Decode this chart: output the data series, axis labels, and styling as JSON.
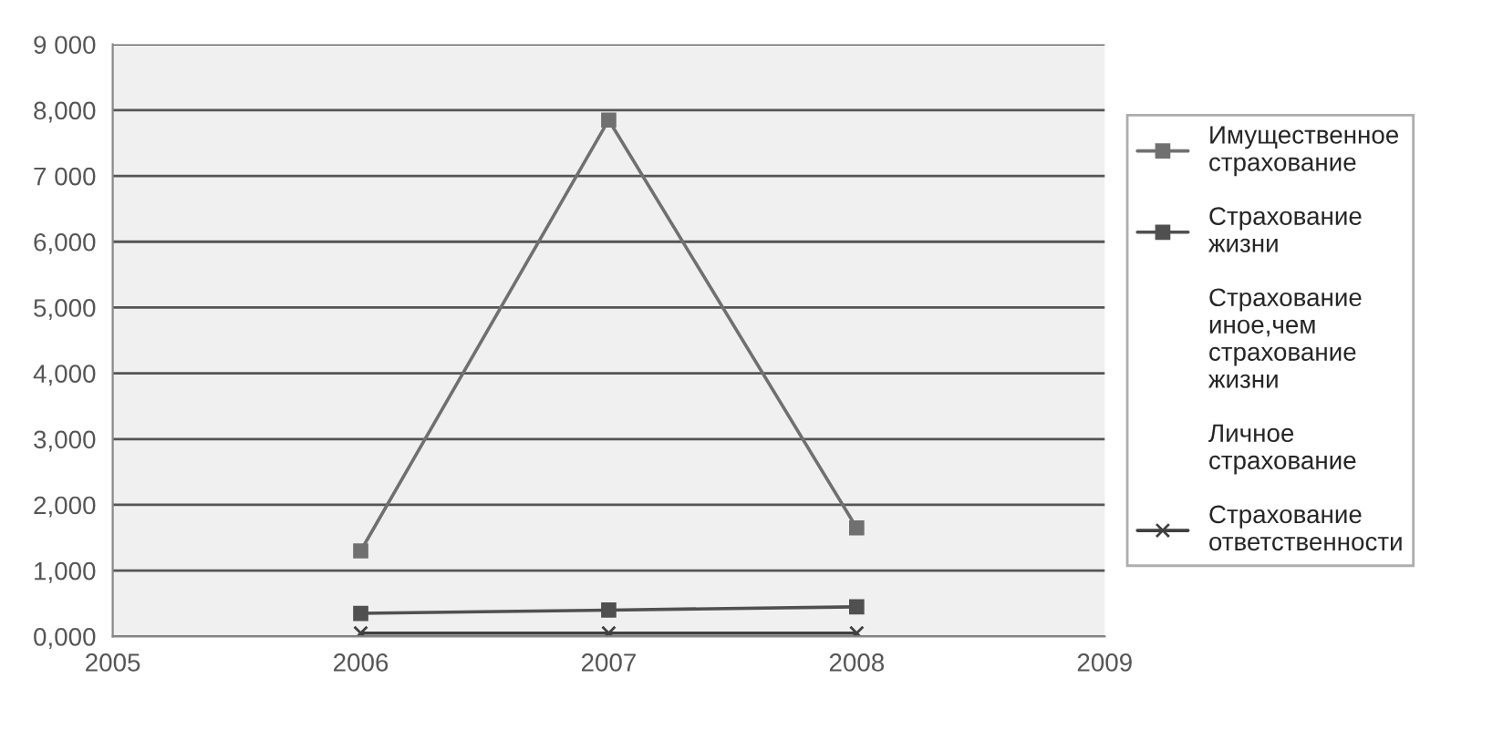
{
  "chart_data": {
    "type": "line",
    "x": [
      2006,
      2007,
      2008
    ],
    "series": [
      {
        "name": "Имущественное страхование",
        "color": "#707070",
        "values": [
          1300,
          7850,
          1650
        ],
        "marker": "square"
      },
      {
        "name": "Страхование жизни",
        "color": "#505050",
        "values": [
          350,
          400,
          450
        ],
        "marker": "square"
      },
      {
        "name": "Страхование иное,чем страхование жизни",
        "values": [
          null,
          null,
          null
        ]
      },
      {
        "name": "Личное страхование",
        "values": [
          null,
          null,
          null
        ]
      },
      {
        "name": "Страхование ответственности",
        "color": "#404040",
        "values": [
          50,
          50,
          50
        ],
        "marker": "cross"
      }
    ],
    "xlim": [
      2005,
      2009
    ],
    "xticks": [
      2005,
      2006,
      2007,
      2008,
      2009
    ],
    "ylim": [
      0,
      9000
    ],
    "yticks": [
      {
        "value": 0,
        "label": "0,000"
      },
      {
        "value": 1000,
        "label": "1,000"
      },
      {
        "value": 2000,
        "label": "2,000"
      },
      {
        "value": 3000,
        "label": "3,000"
      },
      {
        "value": 4000,
        "label": "4,000"
      },
      {
        "value": 5000,
        "label": "5,000"
      },
      {
        "value": 6000,
        "label": "6,000"
      },
      {
        "value": 7000,
        "label": "7 000"
      },
      {
        "value": 8000,
        "label": "8,000"
      },
      {
        "value": 9000,
        "label": "9 000"
      }
    ],
    "grid": "y",
    "legend": "right"
  }
}
